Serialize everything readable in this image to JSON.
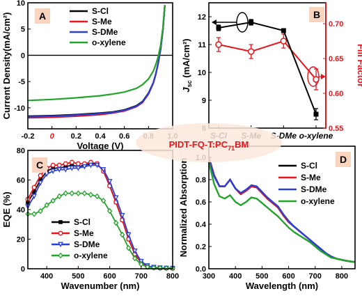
{
  "figure": {
    "center_label": {
      "prefix": "PIDT-FQ-T:PC",
      "sub": "71",
      "suffix": "BM"
    },
    "colors": {
      "S-Cl": "#000000",
      "S-Me": "#e8141b",
      "S-DMe": "#2a3fd6",
      "o-xylene": "#22a32a",
      "panel_letter_bg": "#f9d4be",
      "red_axis": "#e8141b"
    }
  },
  "chart_data": [
    {
      "panel": "A",
      "type": "line",
      "xlabel": "Voltage (V)",
      "ylabel": "Current Density(mA/cm²)",
      "xlim": [
        -0.2,
        1.0
      ],
      "ylim": [
        -14,
        10
      ],
      "x_ticks": [
        "-0.2",
        "0.0",
        "0.2",
        "0.4",
        "0.6",
        "0.8",
        "1.0"
      ],
      "y_ticks": [
        "-10",
        "-5",
        "0",
        "5",
        "10"
      ],
      "legend": [
        "S-Cl",
        "S-Me",
        "S-DMe",
        "o-xylene"
      ],
      "series": [
        {
          "name": "S-Cl",
          "color": "#000000",
          "x": [
            -0.2,
            0,
            0.2,
            0.4,
            0.5,
            0.6,
            0.7,
            0.75,
            0.8,
            0.84,
            0.86,
            0.88,
            0.9,
            0.92,
            0.935
          ],
          "y": [
            -11.6,
            -11.5,
            -11.3,
            -11,
            -10.8,
            -10.4,
            -9.6,
            -8.8,
            -7.2,
            -5.2,
            -3.6,
            -1.5,
            1.2,
            5,
            9.5
          ]
        },
        {
          "name": "S-Me",
          "color": "#e8141b",
          "x": [
            -0.2,
            0,
            0.2,
            0.4,
            0.5,
            0.6,
            0.7,
            0.75,
            0.8,
            0.84,
            0.86,
            0.88,
            0.9,
            0.92,
            0.935
          ],
          "y": [
            -11.9,
            -11.8,
            -11.6,
            -11.3,
            -11,
            -10.6,
            -9.8,
            -9,
            -7.4,
            -5.3,
            -3.7,
            -1.6,
            1.1,
            4.9,
            9.4
          ]
        },
        {
          "name": "S-DMe",
          "color": "#2a3fd6",
          "x": [
            -0.2,
            0,
            0.2,
            0.4,
            0.5,
            0.6,
            0.7,
            0.75,
            0.8,
            0.84,
            0.86,
            0.88,
            0.9,
            0.92,
            0.935
          ],
          "y": [
            -11.7,
            -11.6,
            -11.4,
            -11.1,
            -10.9,
            -10.5,
            -9.7,
            -8.9,
            -7.3,
            -5.2,
            -3.6,
            -1.5,
            1.2,
            5,
            9.5
          ]
        },
        {
          "name": "o-xylene",
          "color": "#22a32a",
          "x": [
            -0.2,
            0,
            0.2,
            0.4,
            0.5,
            0.6,
            0.7,
            0.75,
            0.8,
            0.84,
            0.86,
            0.88,
            0.9,
            0.92,
            0.935
          ],
          "y": [
            -8.6,
            -8.4,
            -8.1,
            -7.7,
            -7.4,
            -7,
            -6.3,
            -5.6,
            -4.5,
            -3,
            -1.8,
            -0.3,
            1.9,
            5.3,
            9.6
          ]
        }
      ]
    },
    {
      "panel": "B",
      "type": "line",
      "categories": [
        "S-Cl",
        "S-Me",
        "S-DMe",
        "o-xylene"
      ],
      "ylabel_left_main": "J",
      "ylabel_left_sub": "sc",
      "ylabel_left_unit": " (mA/cm²)",
      "ylabel_right": "Fill Factor",
      "ylim_left": [
        8,
        12.5
      ],
      "ylim_right": [
        0.55,
        0.73
      ],
      "y_ticks_left": [
        "8",
        "9",
        "10",
        "11",
        "12"
      ],
      "y_ticks_right": [
        "0.55",
        "0.60",
        "0.65",
        "0.70"
      ],
      "series": [
        {
          "name": "Jsc",
          "axis": "left",
          "color": "#000000",
          "values": [
            11.6,
            11.8,
            11.5,
            8.5
          ],
          "errors": [
            0.1,
            0.1,
            0.05,
            0.2
          ]
        },
        {
          "name": "FF",
          "axis": "right",
          "color": "#e8141b",
          "values": [
            0.67,
            0.66,
            0.675,
            0.62
          ],
          "errors": [
            0.01,
            0.01,
            0.01,
            0.015
          ]
        }
      ]
    },
    {
      "panel": "C",
      "type": "line",
      "xlabel": "Wavenumber (nm)",
      "ylabel": "EQE (%)",
      "xlim": [
        340,
        800
      ],
      "ylim": [
        0,
        80
      ],
      "x_ticks": [
        "400",
        "500",
        "600",
        "700",
        "800"
      ],
      "y_ticks": [
        "0",
        "20",
        "40",
        "60",
        "80"
      ],
      "legend": [
        "S-Cl",
        "S-Me",
        "S-DMe",
        "o-xylene"
      ],
      "series": [
        {
          "name": "S-Cl",
          "color": "#000000",
          "marker": "square",
          "x": [
            340,
            360,
            380,
            400,
            420,
            440,
            460,
            480,
            500,
            520,
            540,
            560,
            580,
            600,
            620,
            640,
            660,
            680,
            700,
            720,
            740,
            760,
            780,
            800
          ],
          "y": [
            45,
            52,
            60,
            66,
            68,
            68,
            69,
            70,
            69,
            70,
            71,
            71,
            66,
            56,
            45,
            33,
            20,
            10,
            4,
            1.5,
            0.8,
            0.5,
            0.4,
            0.3
          ]
        },
        {
          "name": "S-Me",
          "color": "#e8141b",
          "marker": "circle",
          "x": [
            340,
            360,
            380,
            400,
            420,
            440,
            460,
            480,
            500,
            520,
            540,
            560,
            580,
            600,
            620,
            640,
            660,
            680,
            700,
            720,
            740,
            760,
            780,
            800
          ],
          "y": [
            47,
            55,
            63,
            68,
            70,
            70,
            71,
            72,
            71,
            71,
            72,
            71,
            66,
            56,
            45,
            33,
            20,
            10,
            4,
            1.5,
            0.8,
            0.5,
            0.4,
            0.3
          ]
        },
        {
          "name": "S-DMe",
          "color": "#2a3fd6",
          "marker": "triangle-down",
          "x": [
            340,
            360,
            380,
            400,
            420,
            440,
            460,
            480,
            500,
            520,
            540,
            560,
            580,
            600,
            620,
            640,
            660,
            680,
            700,
            720,
            740,
            760,
            780,
            800
          ],
          "y": [
            42,
            49,
            58,
            64,
            66,
            67,
            67,
            68,
            68,
            69,
            70,
            70,
            67,
            59,
            48,
            36,
            23,
            12,
            5,
            2,
            1,
            0.6,
            0.4,
            0.3
          ]
        },
        {
          "name": "o-xylene",
          "color": "#22a32a",
          "marker": "diamond",
          "x": [
            340,
            360,
            380,
            400,
            420,
            440,
            460,
            480,
            500,
            520,
            540,
            560,
            580,
            600,
            620,
            640,
            660,
            680,
            700,
            720,
            740,
            760,
            780,
            800
          ],
          "y": [
            37,
            37,
            39,
            43,
            46,
            49,
            51,
            51,
            51,
            51,
            50,
            49,
            46,
            39,
            31,
            23,
            14,
            7,
            3,
            1.2,
            0.7,
            0.5,
            0.4,
            0.3
          ]
        }
      ]
    },
    {
      "panel": "D",
      "type": "line",
      "xlabel": "Wavelength (nm)",
      "ylabel": "Normalized Absorption",
      "xlim": [
        300,
        850
      ],
      "ylim": [
        0,
        1.1
      ],
      "x_ticks": [
        "300",
        "400",
        "500",
        "600",
        "700",
        "800"
      ],
      "y_ticks": [
        "0.0",
        "0.2",
        "0.4",
        "0.6",
        "0.8",
        "1.0"
      ],
      "legend": [
        "S-Cl",
        "S-Me",
        "S-DMe",
        "o-xylene"
      ],
      "series": [
        {
          "name": "S-Cl",
          "color": "#000000",
          "x": [
            300,
            320,
            340,
            360,
            380,
            400,
            420,
            440,
            460,
            480,
            500,
            520,
            540,
            560,
            580,
            600,
            620,
            640,
            660,
            680,
            700,
            720,
            740,
            760,
            780,
            800,
            820,
            850
          ],
          "y": [
            1,
            0.84,
            0.74,
            0.74,
            0.8,
            0.72,
            0.67,
            0.7,
            0.74,
            0.73,
            0.68,
            0.63,
            0.59,
            0.55,
            0.48,
            0.42,
            0.38,
            0.34,
            0.3,
            0.26,
            0.22,
            0.18,
            0.14,
            0.11,
            0.09,
            0.08,
            0.07,
            0.06
          ]
        },
        {
          "name": "S-Me",
          "color": "#e8141b",
          "x": [
            300,
            320,
            340,
            360,
            380,
            400,
            420,
            440,
            460,
            480,
            500,
            520,
            540,
            560,
            580,
            600,
            620,
            640,
            660,
            680,
            700,
            720,
            740,
            760,
            780,
            800,
            820,
            850
          ],
          "y": [
            1,
            0.84,
            0.74,
            0.74,
            0.8,
            0.72,
            0.67,
            0.7,
            0.74,
            0.73,
            0.68,
            0.63,
            0.59,
            0.55,
            0.48,
            0.42,
            0.38,
            0.34,
            0.3,
            0.26,
            0.22,
            0.18,
            0.14,
            0.11,
            0.09,
            0.08,
            0.07,
            0.06
          ]
        },
        {
          "name": "S-DMe",
          "color": "#2a3fd6",
          "x": [
            300,
            320,
            340,
            360,
            380,
            400,
            420,
            440,
            460,
            480,
            500,
            520,
            540,
            560,
            580,
            600,
            620,
            640,
            660,
            680,
            700,
            720,
            740,
            760,
            780,
            800,
            820,
            850
          ],
          "y": [
            0.99,
            0.83,
            0.74,
            0.74,
            0.8,
            0.72,
            0.68,
            0.71,
            0.75,
            0.74,
            0.69,
            0.64,
            0.6,
            0.56,
            0.49,
            0.43,
            0.38,
            0.34,
            0.3,
            0.26,
            0.22,
            0.18,
            0.14,
            0.11,
            0.09,
            0.08,
            0.07,
            0.06
          ]
        },
        {
          "name": "o-xylene",
          "color": "#22a32a",
          "x": [
            300,
            320,
            340,
            360,
            380,
            400,
            420,
            440,
            460,
            480,
            500,
            520,
            540,
            560,
            580,
            600,
            620,
            640,
            660,
            680,
            700,
            720,
            740,
            760,
            780,
            800,
            820,
            850
          ],
          "y": [
            0.96,
            0.76,
            0.65,
            0.63,
            0.66,
            0.6,
            0.57,
            0.6,
            0.64,
            0.63,
            0.59,
            0.55,
            0.51,
            0.47,
            0.42,
            0.37,
            0.33,
            0.3,
            0.27,
            0.24,
            0.2,
            0.16,
            0.13,
            0.1,
            0.09,
            0.08,
            0.07,
            0.06
          ]
        }
      ]
    }
  ]
}
